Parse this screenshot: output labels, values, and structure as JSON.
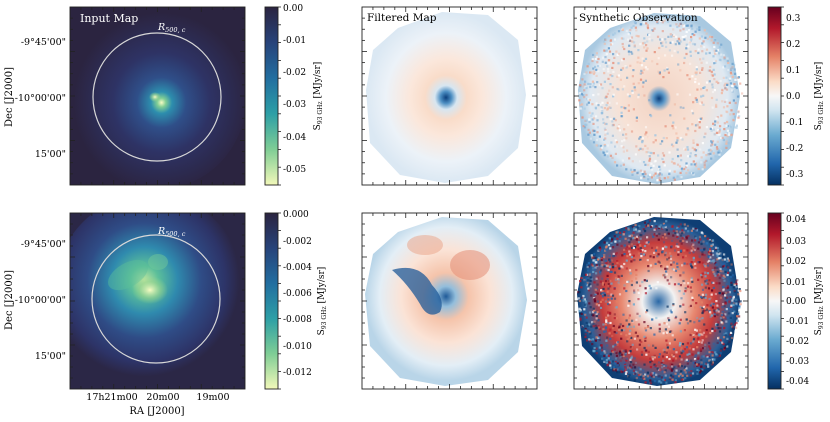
{
  "figure": {
    "rows": [
      {
        "name": "top",
        "input_map": {
          "title": "Input Map",
          "circle_label": "R",
          "circle_label_sub": "500, c",
          "y_ticks": [
            "-9°45'00\"",
            "-10°00'00\"",
            "15'00\""
          ],
          "ylabel": "Dec [J2000]"
        },
        "filtered_title": "Filtered Map",
        "synthetic_title": "Synthetic Observation",
        "colorbar_input": {
          "label_main": "S",
          "label_sub": "93 GHz",
          "label_unit": " [MJy/sr]",
          "ticks": [
            "0.00",
            "-0.01",
            "-0.02",
            "-0.03",
            "-0.04",
            "-0.05"
          ],
          "range": [
            -0.055,
            0.0
          ]
        },
        "colorbar_obs": {
          "label_main": "S",
          "label_sub": "93 GHz",
          "label_unit": " [MJy/sr]",
          "ticks": [
            "0.3",
            "0.2",
            "0.1",
            "0.0",
            "-0.1",
            "-0.2",
            "-0.3"
          ],
          "range": [
            -0.34,
            0.34
          ]
        }
      },
      {
        "name": "bottom",
        "input_map": {
          "title": "",
          "circle_label": "R",
          "circle_label_sub": "500, c",
          "y_ticks": [
            "-9°45'00\"",
            "-10°00'00\"",
            "15'00\""
          ],
          "ylabel": "Dec [J2000]"
        },
        "colorbar_input": {
          "label_main": "S",
          "label_sub": "93 GHz",
          "label_unit": " [MJy/sr]",
          "ticks": [
            "0.000",
            "-0.002",
            "-0.004",
            "-0.006",
            "-0.008",
            "-0.010",
            "-0.012"
          ],
          "range": [
            -0.0134,
            0.0
          ]
        },
        "colorbar_obs": {
          "label_main": "S",
          "label_sub": "93 GHz",
          "label_unit": " [MJy/sr]",
          "ticks": [
            "0.04",
            "0.03",
            "0.02",
            "0.01",
            "0.00",
            "-0.01",
            "-0.02",
            "-0.03",
            "-0.04"
          ],
          "range": [
            -0.045,
            0.045
          ]
        }
      }
    ],
    "x_ticks": [
      "17h21m00",
      "20m00",
      "19m00"
    ],
    "xlabel": "RA [J2000]"
  },
  "chart_data": [
    {
      "type": "heatmap",
      "title": "Input Map",
      "row": "top",
      "colormap": "YlGnBu_r",
      "unit": "S_93GHz [MJy/sr]",
      "value_range": [
        -0.055,
        0.0
      ],
      "xlabel": "RA [J2000]",
      "ylabel": "Dec [J2000]",
      "annotation": "circle R500,c"
    },
    {
      "type": "heatmap",
      "title": "Filtered Map",
      "row": "top",
      "colormap": "RdBu_r",
      "value_range": [
        -0.34,
        0.34
      ]
    },
    {
      "type": "heatmap",
      "title": "Synthetic Observation",
      "row": "top",
      "colormap": "RdBu_r",
      "value_range": [
        -0.34,
        0.34
      ]
    },
    {
      "type": "heatmap",
      "title": "",
      "row": "bottom",
      "colormap": "YlGnBu_r",
      "value_range": [
        -0.0134,
        0.0
      ],
      "xlabel": "RA [J2000]",
      "ylabel": "Dec [J2000]",
      "annotation": "circle R500,c"
    },
    {
      "type": "heatmap",
      "title": "",
      "row": "bottom",
      "colormap": "RdBu_r",
      "value_range": [
        -0.045,
        0.045
      ]
    },
    {
      "type": "heatmap",
      "title": "",
      "row": "bottom",
      "colormap": "RdBu_r",
      "value_range": [
        -0.045,
        0.045
      ]
    }
  ],
  "colors": {
    "frame": "#222222",
    "input_bg": "#2b2440",
    "red": "#a50f26",
    "blue": "#083e7c",
    "white": "#f7f7f7"
  }
}
